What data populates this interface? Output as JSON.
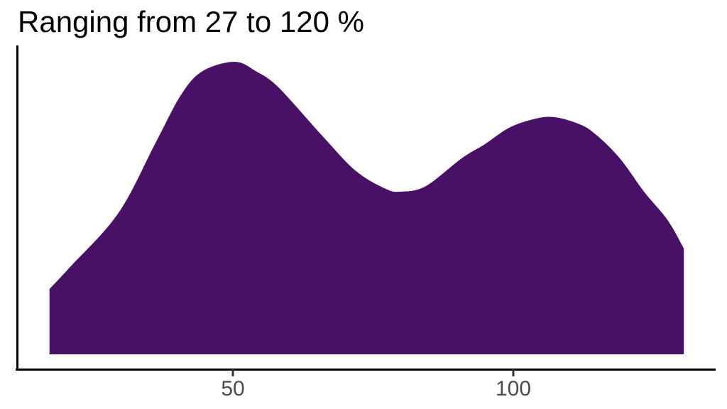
{
  "title": "Ranging from 27 to 120 %",
  "colors": {
    "fill": "#481166",
    "axis_line": "#000000",
    "tick_mark": "#333333",
    "tick_label": "#4d4d4d",
    "background": "#ffffff",
    "title_text": "#000000"
  },
  "chart_data": {
    "type": "area",
    "subtype": "density",
    "title": "Ranging from 27 to 120 %",
    "xlabel": "",
    "ylabel": "",
    "legend_position": "none",
    "grid": false,
    "x_range_of_data": [
      27,
      120
    ],
    "x_curve_extent": [
      17.3,
      130.4
    ],
    "x_ticks": [
      {
        "value": 50,
        "label": "50"
      },
      {
        "value": 100,
        "label": "100"
      }
    ],
    "y_axis_labeled": false,
    "y_units": "normalized density (peak = 1)",
    "peaks": [
      {
        "x": 50,
        "height": 1.0
      },
      {
        "x": 107,
        "height": 0.81
      }
    ],
    "valley": {
      "x": 80,
      "height": 0.56
    },
    "series": [
      {
        "name": "density",
        "points": [
          [
            17.3,
            0.223
          ],
          [
            21.1,
            0.301
          ],
          [
            29.6,
            0.483
          ],
          [
            36.3,
            0.726
          ],
          [
            40.8,
            0.888
          ],
          [
            44.6,
            0.968
          ],
          [
            50.3,
            1.0
          ],
          [
            54.1,
            0.968
          ],
          [
            58.1,
            0.913
          ],
          [
            65.8,
            0.75
          ],
          [
            71.8,
            0.629
          ],
          [
            77.2,
            0.566
          ],
          [
            80.0,
            0.556
          ],
          [
            84.4,
            0.575
          ],
          [
            90.8,
            0.67
          ],
          [
            94.9,
            0.718
          ],
          [
            99.2,
            0.774
          ],
          [
            103.4,
            0.803
          ],
          [
            107.2,
            0.811
          ],
          [
            111.9,
            0.786
          ],
          [
            114.8,
            0.75
          ],
          [
            119.0,
            0.67
          ],
          [
            123.3,
            0.556
          ],
          [
            127.5,
            0.459
          ],
          [
            130.4,
            0.362
          ]
        ]
      }
    ]
  }
}
